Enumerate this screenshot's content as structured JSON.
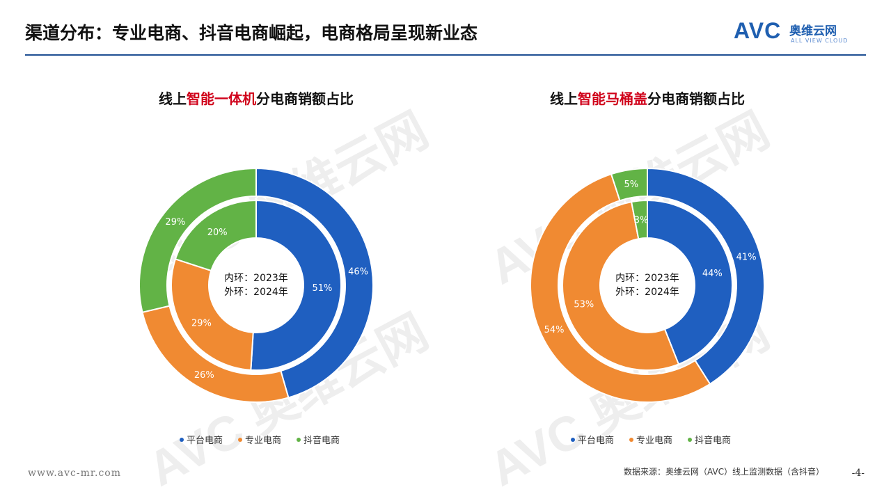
{
  "header": {
    "title": "渠道分布：专业电商、抖音电商崛起，电商格局呈现新业态",
    "logo_text": "AVC",
    "logo_cn": "奥维云网",
    "logo_en": "ALL VIEW CLOUD"
  },
  "colors": {
    "platform": "#1f5fc0",
    "professional": "#f08a32",
    "douyin": "#62b346"
  },
  "chart_data": [
    {
      "type": "donut",
      "title_parts": [
        "线上",
        "智能一体机",
        "分电商销额占比"
      ],
      "center_lines": [
        "内环：2023年",
        "外环：2024年"
      ],
      "categories": [
        "平台电商",
        "专业电商",
        "抖音电商"
      ],
      "series": [
        {
          "ring": "inner",
          "year": "2023",
          "values": [
            51,
            29,
            20
          ],
          "labels": [
            "51%",
            "29%",
            "20%"
          ]
        },
        {
          "ring": "outer",
          "year": "2024",
          "values": [
            46,
            26,
            29
          ],
          "labels": [
            "46%",
            "26%",
            "29%"
          ]
        }
      ]
    },
    {
      "type": "donut",
      "title_parts": [
        "线上",
        "智能马桶盖",
        "分电商销额占比"
      ],
      "center_lines": [
        "内环：2023年",
        "外环：2024年"
      ],
      "categories": [
        "平台电商",
        "专业电商",
        "抖音电商"
      ],
      "series": [
        {
          "ring": "inner",
          "year": "2023",
          "values": [
            44,
            53,
            3
          ],
          "labels": [
            "44%",
            "53%",
            "3%"
          ]
        },
        {
          "ring": "outer",
          "year": "2024",
          "values": [
            41,
            54,
            5
          ],
          "labels": [
            "41%",
            "54%",
            "5%"
          ]
        }
      ]
    }
  ],
  "legend": [
    "平台电商",
    "专业电商",
    "抖音电商"
  ],
  "footer": {
    "url": "www.avc-mr.com",
    "source": "数据来源：奥维云网（AVC）线上监测数据（含抖音）",
    "page": "-4-"
  }
}
